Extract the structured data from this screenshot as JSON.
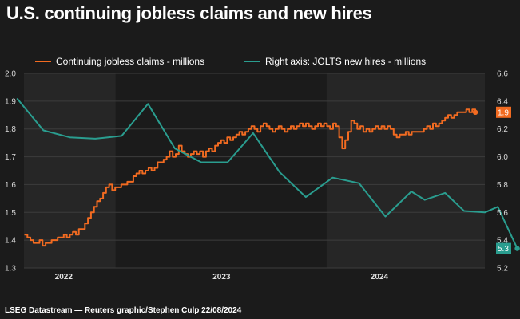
{
  "title": "U.S. continuing jobless claims and new hires",
  "source": "LSEG Datastream — Reuters graphic/Stephen Culp 22/08/2024",
  "colors": {
    "claims": "#f26b21",
    "hires": "#2a9d8f",
    "background": "#1b1b1b",
    "panel_alt": "#262626",
    "grid": "#3c3c3c"
  },
  "chart_data": {
    "type": "line",
    "title": "U.S. continuing jobless claims and new hires",
    "x_tick_labels": [
      "2022",
      "2023",
      "2024"
    ],
    "y_left": {
      "ylim": [
        1.3,
        2.0
      ],
      "ticks": [
        "1.3",
        "1.4",
        "1.5",
        "1.6",
        "1.7",
        "1.8",
        "1.9",
        "2.0"
      ]
    },
    "y_right": {
      "ylim": [
        5.2,
        6.6
      ],
      "ticks": [
        "5.2",
        "5.4",
        "5.6",
        "5.8",
        "6.0",
        "6.2",
        "6.4",
        "6.6"
      ]
    },
    "grid": true,
    "legend_position": "top",
    "series": [
      {
        "name": "Continuing jobless claims - millions",
        "axis": "left",
        "color": "#f26b21",
        "end_label": "1.9",
        "points": [
          [
            "2021-10-02",
            1.42
          ],
          [
            "2021-10-09",
            1.41
          ],
          [
            "2021-10-16",
            1.4
          ],
          [
            "2021-10-23",
            1.39
          ],
          [
            "2021-10-30",
            1.39
          ],
          [
            "2021-11-06",
            1.4
          ],
          [
            "2021-11-13",
            1.38
          ],
          [
            "2021-11-20",
            1.39
          ],
          [
            "2021-11-27",
            1.39
          ],
          [
            "2021-12-04",
            1.4
          ],
          [
            "2021-12-11",
            1.4
          ],
          [
            "2021-12-18",
            1.41
          ],
          [
            "2021-12-25",
            1.41
          ],
          [
            "2022-01-01",
            1.42
          ],
          [
            "2022-01-08",
            1.41
          ],
          [
            "2022-01-15",
            1.42
          ],
          [
            "2022-01-22",
            1.43
          ],
          [
            "2022-01-29",
            1.42
          ],
          [
            "2022-02-05",
            1.44
          ],
          [
            "2022-02-12",
            1.44
          ],
          [
            "2022-02-19",
            1.46
          ],
          [
            "2022-02-26",
            1.48
          ],
          [
            "2022-03-05",
            1.5
          ],
          [
            "2022-03-12",
            1.52
          ],
          [
            "2022-03-19",
            1.54
          ],
          [
            "2022-03-26",
            1.55
          ],
          [
            "2022-04-02",
            1.57
          ],
          [
            "2022-04-09",
            1.59
          ],
          [
            "2022-04-16",
            1.6
          ],
          [
            "2022-04-23",
            1.58
          ],
          [
            "2022-04-30",
            1.59
          ],
          [
            "2022-05-07",
            1.59
          ],
          [
            "2022-05-14",
            1.6
          ],
          [
            "2022-05-21",
            1.6
          ],
          [
            "2022-05-28",
            1.61
          ],
          [
            "2022-06-04",
            1.61
          ],
          [
            "2022-06-11",
            1.63
          ],
          [
            "2022-06-18",
            1.64
          ],
          [
            "2022-06-25",
            1.65
          ],
          [
            "2022-07-02",
            1.64
          ],
          [
            "2022-07-09",
            1.65
          ],
          [
            "2022-07-16",
            1.66
          ],
          [
            "2022-07-23",
            1.65
          ],
          [
            "2022-07-30",
            1.66
          ],
          [
            "2022-08-06",
            1.68
          ],
          [
            "2022-08-13",
            1.68
          ],
          [
            "2022-08-20",
            1.69
          ],
          [
            "2022-08-27",
            1.7
          ],
          [
            "2022-09-03",
            1.72
          ],
          [
            "2022-09-10",
            1.7
          ],
          [
            "2022-09-17",
            1.71
          ],
          [
            "2022-09-24",
            1.74
          ],
          [
            "2022-10-01",
            1.72
          ],
          [
            "2022-10-08",
            1.71
          ],
          [
            "2022-10-15",
            1.7
          ],
          [
            "2022-10-22",
            1.71
          ],
          [
            "2022-10-29",
            1.72
          ],
          [
            "2022-11-05",
            1.71
          ],
          [
            "2022-11-12",
            1.72
          ],
          [
            "2022-11-19",
            1.7
          ],
          [
            "2022-11-26",
            1.72
          ],
          [
            "2022-12-03",
            1.73
          ],
          [
            "2022-12-10",
            1.72
          ],
          [
            "2022-12-17",
            1.74
          ],
          [
            "2022-12-24",
            1.75
          ],
          [
            "2022-12-31",
            1.76
          ],
          [
            "2023-01-07",
            1.75
          ],
          [
            "2023-01-14",
            1.77
          ],
          [
            "2023-01-21",
            1.76
          ],
          [
            "2023-01-28",
            1.77
          ],
          [
            "2023-02-04",
            1.78
          ],
          [
            "2023-02-11",
            1.79
          ],
          [
            "2023-02-18",
            1.78
          ],
          [
            "2023-02-25",
            1.79
          ],
          [
            "2023-03-04",
            1.8
          ],
          [
            "2023-03-11",
            1.81
          ],
          [
            "2023-03-18",
            1.8
          ],
          [
            "2023-03-25",
            1.79
          ],
          [
            "2023-04-01",
            1.81
          ],
          [
            "2023-04-08",
            1.82
          ],
          [
            "2023-04-15",
            1.81
          ],
          [
            "2023-04-22",
            1.8
          ],
          [
            "2023-04-29",
            1.79
          ],
          [
            "2023-05-06",
            1.8
          ],
          [
            "2023-05-13",
            1.81
          ],
          [
            "2023-05-20",
            1.8
          ],
          [
            "2023-05-27",
            1.79
          ],
          [
            "2023-06-03",
            1.8
          ],
          [
            "2023-06-10",
            1.81
          ],
          [
            "2023-06-17",
            1.8
          ],
          [
            "2023-06-24",
            1.81
          ],
          [
            "2023-07-01",
            1.82
          ],
          [
            "2023-07-08",
            1.81
          ],
          [
            "2023-07-15",
            1.82
          ],
          [
            "2023-07-22",
            1.81
          ],
          [
            "2023-07-29",
            1.8
          ],
          [
            "2023-08-05",
            1.81
          ],
          [
            "2023-08-12",
            1.82
          ],
          [
            "2023-08-19",
            1.81
          ],
          [
            "2023-08-26",
            1.82
          ],
          [
            "2023-09-02",
            1.81
          ],
          [
            "2023-09-09",
            1.8
          ],
          [
            "2023-09-16",
            1.82
          ],
          [
            "2023-09-23",
            1.81
          ],
          [
            "2023-09-30",
            1.77
          ],
          [
            "2023-10-07",
            1.73
          ],
          [
            "2023-10-14",
            1.76
          ],
          [
            "2023-10-21",
            1.79
          ],
          [
            "2023-10-28",
            1.83
          ],
          [
            "2023-11-04",
            1.82
          ],
          [
            "2023-11-11",
            1.8
          ],
          [
            "2023-11-18",
            1.81
          ],
          [
            "2023-11-25",
            1.79
          ],
          [
            "2023-12-02",
            1.8
          ],
          [
            "2023-12-09",
            1.79
          ],
          [
            "2023-12-16",
            1.8
          ],
          [
            "2023-12-23",
            1.81
          ],
          [
            "2023-12-30",
            1.8
          ],
          [
            "2024-01-06",
            1.81
          ],
          [
            "2024-01-13",
            1.8
          ],
          [
            "2024-01-20",
            1.81
          ],
          [
            "2024-01-27",
            1.8
          ],
          [
            "2024-02-03",
            1.78
          ],
          [
            "2024-02-10",
            1.77
          ],
          [
            "2024-02-17",
            1.78
          ],
          [
            "2024-02-24",
            1.78
          ],
          [
            "2024-03-02",
            1.79
          ],
          [
            "2024-03-09",
            1.78
          ],
          [
            "2024-03-16",
            1.79
          ],
          [
            "2024-03-23",
            1.79
          ],
          [
            "2024-03-30",
            1.79
          ],
          [
            "2024-04-06",
            1.79
          ],
          [
            "2024-04-13",
            1.8
          ],
          [
            "2024-04-20",
            1.81
          ],
          [
            "2024-04-27",
            1.8
          ],
          [
            "2024-05-04",
            1.82
          ],
          [
            "2024-05-11",
            1.81
          ],
          [
            "2024-05-18",
            1.82
          ],
          [
            "2024-05-25",
            1.83
          ],
          [
            "2024-06-01",
            1.84
          ],
          [
            "2024-06-08",
            1.85
          ],
          [
            "2024-06-15",
            1.84
          ],
          [
            "2024-06-22",
            1.85
          ],
          [
            "2024-06-29",
            1.86
          ],
          [
            "2024-07-06",
            1.86
          ],
          [
            "2024-07-13",
            1.86
          ],
          [
            "2024-07-20",
            1.87
          ],
          [
            "2024-07-27",
            1.86
          ],
          [
            "2024-08-03",
            1.87
          ],
          [
            "2024-08-10",
            1.86
          ]
        ]
      },
      {
        "name": "Right axis: JOLTS new hires - millions",
        "axis": "right",
        "color": "#2a9d8f",
        "end_label": "5.3",
        "points": [
          [
            "2021-09-15",
            6.42
          ],
          [
            "2021-11-15",
            6.19
          ],
          [
            "2022-01-15",
            6.14
          ],
          [
            "2022-03-15",
            6.13
          ],
          [
            "2022-05-15",
            6.15
          ],
          [
            "2022-07-15",
            6.38
          ],
          [
            "2022-09-15",
            6.06
          ],
          [
            "2022-11-15",
            5.96
          ],
          [
            "2023-01-15",
            5.96
          ],
          [
            "2023-03-15",
            6.17
          ],
          [
            "2023-05-15",
            5.89
          ],
          [
            "2023-07-15",
            5.71
          ],
          [
            "2023-09-15",
            5.85
          ],
          [
            "2023-11-15",
            5.81
          ],
          [
            "2024-01-15",
            5.57
          ],
          [
            "2024-03-15",
            5.75
          ],
          [
            "2024-04-15",
            5.69
          ],
          [
            "2024-06-01",
            5.74
          ],
          [
            "2024-07-15",
            5.61
          ],
          [
            "2024-09-01",
            5.6
          ],
          [
            "2024-10-01",
            5.64
          ],
          [
            "2024-11-15",
            5.34
          ]
        ]
      }
    ]
  }
}
